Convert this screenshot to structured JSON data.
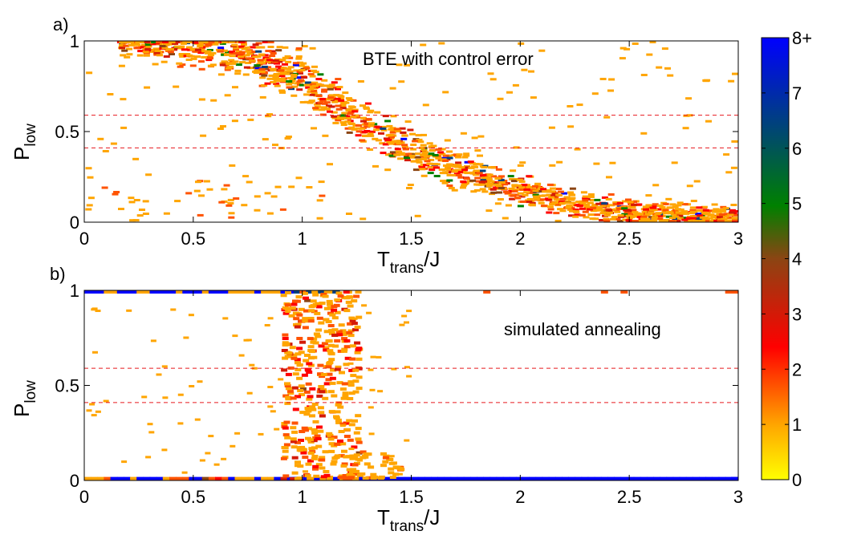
{
  "chart_data": {
    "panels": [
      {
        "id": "a",
        "type": "heatmap",
        "panel_label": "a)",
        "annotation": "BTE with control error",
        "xlabel_main": "T",
        "xlabel_sub": "trans",
        "xlabel_tail": "/J",
        "ylabel_main": "P",
        "ylabel_sub": "low",
        "xlim": [
          0,
          3
        ],
        "ylim": [
          0,
          1
        ],
        "xticks": [
          0,
          0.5,
          1,
          1.5,
          2,
          2.5,
          3
        ],
        "xtick_labels": [
          "0",
          "0.5",
          "1",
          "1.5",
          "2",
          "2.5",
          "3"
        ],
        "yticks": [
          0,
          0.5,
          1
        ],
        "ytick_labels": [
          "0",
          "0.5",
          "1"
        ],
        "reference_lines_y": [
          0.41,
          0.59
        ],
        "ridge": [
          [
            0.15,
            1.0
          ],
          [
            0.6,
            0.94
          ],
          [
            0.85,
            0.87
          ],
          [
            1.0,
            0.78
          ],
          [
            1.2,
            0.6
          ],
          [
            1.4,
            0.45
          ],
          [
            1.6,
            0.34
          ],
          [
            1.8,
            0.25
          ],
          [
            2.0,
            0.17
          ],
          [
            2.2,
            0.11
          ],
          [
            2.5,
            0.06
          ],
          [
            2.8,
            0.03
          ],
          [
            3.0,
            0.01
          ]
        ]
      },
      {
        "id": "b",
        "type": "heatmap",
        "panel_label": "b)",
        "annotation": "simulated annealing",
        "xlabel_main": "T",
        "xlabel_sub": "trans",
        "xlabel_tail": "/J",
        "ylabel_main": "P",
        "ylabel_sub": "low",
        "xlim": [
          0,
          3
        ],
        "ylim": [
          0,
          1
        ],
        "xticks": [
          0,
          0.5,
          1,
          1.5,
          2,
          2.5,
          3
        ],
        "xtick_labels": [
          "0",
          "0.5",
          "1",
          "1.5",
          "2",
          "2.5",
          "3"
        ],
        "yticks": [
          0,
          0.5,
          1
        ],
        "ytick_labels": [
          "0",
          "0.5",
          "1"
        ],
        "reference_lines_y": [
          0.41,
          0.59
        ],
        "transition_band": [
          0.9,
          1.25
        ]
      }
    ],
    "colorbar": {
      "min": 0,
      "max": 8,
      "tick_values": [
        0,
        1,
        2,
        3,
        4,
        5,
        6,
        7,
        8
      ],
      "tick_labels": [
        "0",
        "1",
        "2",
        "3",
        "4",
        "5",
        "6",
        "7",
        "8+"
      ],
      "colors": [
        "#ffff00",
        "#ffa500",
        "#ff0000",
        "#8b4513",
        "#008000",
        "#0000ff"
      ]
    }
  }
}
